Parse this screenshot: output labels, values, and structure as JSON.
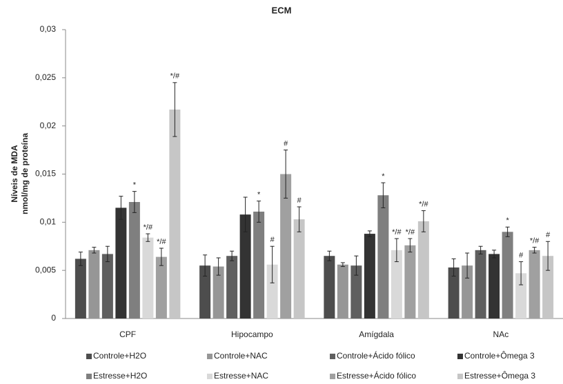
{
  "chart_data": {
    "type": "bar",
    "title": "ECM",
    "ylabel": [
      "Níveis de MDA",
      "nmol/mg de proteína"
    ],
    "categories": [
      "CPF",
      "Hipocampo",
      "Amígdala",
      "NAc"
    ],
    "ylim": [
      0,
      0.03
    ],
    "yticks": [
      0,
      {
        "value": 0.005,
        "label": "0,005"
      },
      {
        "value": 0.01,
        "label": "0,01"
      },
      {
        "value": 0.015,
        "label": "0,015"
      },
      {
        "value": 0.02,
        "label": "0,02"
      },
      {
        "value": 0.025,
        "label": "0,025"
      },
      {
        "value": 0.03,
        "label": "0,03"
      }
    ],
    "series": [
      {
        "name": "Controle+H2O",
        "color": "#4d4d4d",
        "values": [
          0.0062,
          0.0055,
          0.0065,
          0.0053
        ],
        "errors": [
          0.0007,
          0.0011,
          0.0005,
          0.0009
        ],
        "annotations": [
          null,
          null,
          null,
          null
        ]
      },
      {
        "name": "Controle+NAC",
        "color": "#969696",
        "values": [
          0.0071,
          0.0054,
          0.0056,
          0.0055
        ],
        "errors": [
          0.0003,
          0.0009,
          0.0002,
          0.0013
        ],
        "annotations": [
          null,
          null,
          null,
          null
        ]
      },
      {
        "name": "Controle+Ácido fólico",
        "color": "#5f5f5f",
        "values": [
          0.0067,
          0.0065,
          0.0055,
          0.0071
        ],
        "errors": [
          0.0008,
          0.0005,
          0.001,
          0.0004
        ],
        "annotations": [
          null,
          null,
          null,
          null
        ]
      },
      {
        "name": "Controle+Ômega 3",
        "color": "#333333",
        "values": [
          0.0115,
          0.0108,
          0.0088,
          0.0067
        ],
        "errors": [
          0.0012,
          0.0018,
          0.0003,
          0.0004
        ],
        "annotations": [
          null,
          null,
          null,
          null
        ]
      },
      {
        "name": "Estresse+H2O",
        "color": "#7f7f7f",
        "values": [
          0.0121,
          0.0111,
          0.0128,
          0.009
        ],
        "errors": [
          0.0011,
          0.0011,
          0.0013,
          0.0005
        ],
        "annotations": [
          "*",
          "*",
          "*",
          "*"
        ]
      },
      {
        "name": "Estresse+NAC",
        "color": "#d9d9d9",
        "values": [
          0.0084,
          0.0056,
          0.0071,
          0.0047
        ],
        "errors": [
          0.0004,
          0.0019,
          0.0012,
          0.0012
        ],
        "annotations": [
          "*/#",
          "#",
          "*/#",
          "#"
        ]
      },
      {
        "name": "Estresse+Ácido fólico",
        "color": "#a0a0a0",
        "values": [
          0.0064,
          0.015,
          0.0076,
          0.0071
        ],
        "errors": [
          0.0009,
          0.0025,
          0.0007,
          0.0003
        ],
        "annotations": [
          "*/#",
          "#",
          "*/#",
          "*/#"
        ]
      },
      {
        "name": "Estresse+Ômega 3",
        "color": "#c6c6c6",
        "values": [
          0.0217,
          0.0103,
          0.0101,
          0.0065
        ],
        "errors": [
          0.0028,
          0.0013,
          0.0011,
          0.0015
        ],
        "annotations": [
          "*/#",
          "#",
          "*/#",
          "#"
        ]
      }
    ]
  }
}
